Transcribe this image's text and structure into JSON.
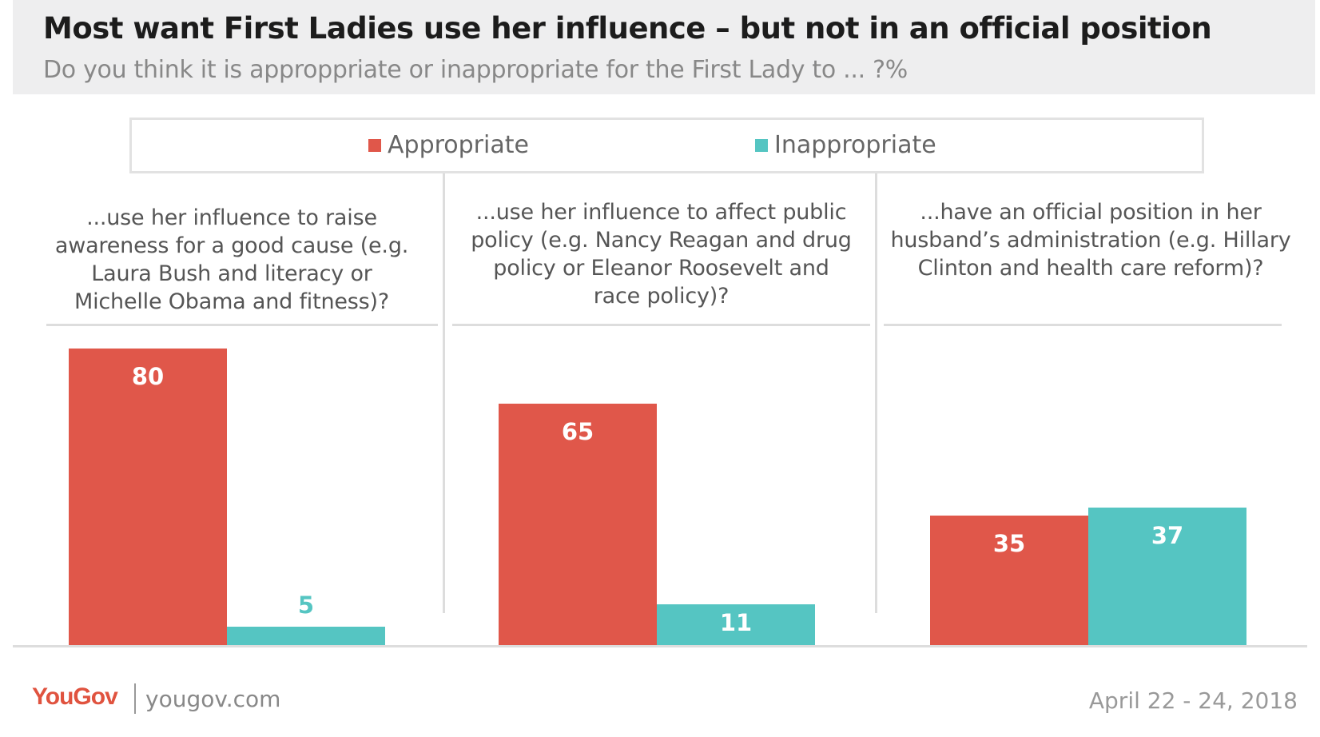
{
  "header": {
    "title": "Most want First Ladies use her influence – but not in an official position",
    "subtitle": "Do you think it is approppriate or inappropriate for the First Lady to ... ?%"
  },
  "colors": {
    "appropriate": "#e0574a",
    "inappropriate": "#55c5c2"
  },
  "chart_data": {
    "type": "bar",
    "title": "Most want First Ladies use her influence – but not in an official position",
    "subtitle": "Do you think it is approppriate or inappropriate for the First Lady to ... ?%",
    "legend_position": "top",
    "ylim": [
      0,
      100
    ],
    "grid": false,
    "categories": [
      "...use her influence to raise awareness for a good cause (e.g. Laura Bush and literacy or Michelle Obama and fitness)?",
      "...use her influence to affect public policy (e.g. Nancy Reagan and drug policy or Eleanor Roosevelt and race policy)?",
      "...have an official position in her husband’s administration (e.g. Hillary Clinton and health care reform)?"
    ],
    "series": [
      {
        "name": "Appropriate",
        "values": [
          80,
          65,
          35
        ]
      },
      {
        "name": "Inappropriate",
        "values": [
          5,
          11,
          37
        ]
      }
    ]
  },
  "questions": [
    [
      "...use her influence to raise",
      "awareness for a good cause (e.g.",
      "Laura Bush and literacy or",
      "Michelle Obama and fitness)?"
    ],
    [
      "...use her influence to affect public",
      "policy (e.g. Nancy Reagan and drug",
      "policy or Eleanor Roosevelt and",
      "race policy)?"
    ],
    [
      "...have an official position in her",
      "husband’s administration (e.g. Hillary",
      "Clinton and health care reform)?"
    ]
  ],
  "footer": {
    "brand": "YouGov",
    "url": "yougov.com",
    "date": "April 22 - 24, 2018"
  }
}
